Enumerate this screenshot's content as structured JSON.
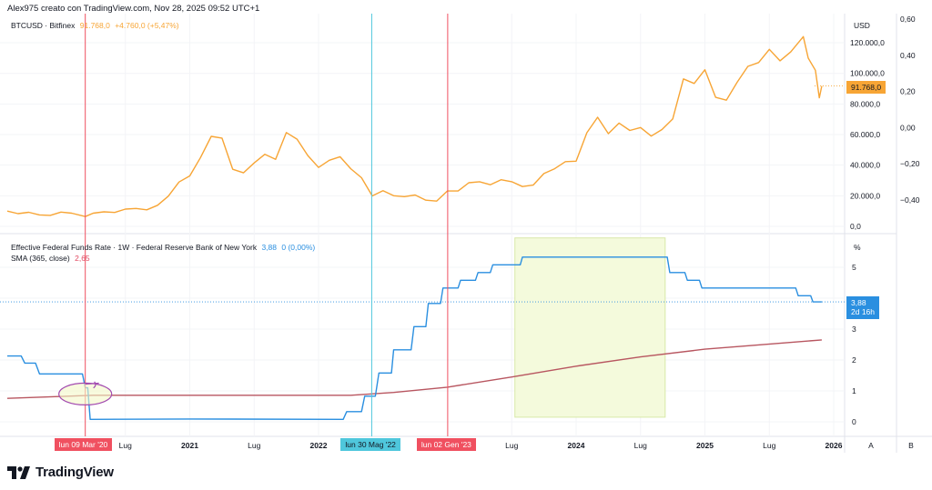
{
  "header": {
    "credit": "Alex975 creato con TradingView.com, Nov 28, 2025 09:52 UTC+1"
  },
  "colors": {
    "btc": "#f7a535",
    "rate": "#2a8fe0",
    "sma": "#b85660",
    "marker_red": "#f05060",
    "marker_cyan": "#4fc7dc",
    "highlight": "#f4fadc",
    "annotation": "#a24ab0"
  },
  "top_pane": {
    "symbol": "BTCUSD · Bitfinex",
    "last": "91.768,0",
    "change": "+4.760,0 (+5,47%)",
    "axis_unit": "USD",
    "price_badge": "91.768,0",
    "axis_ticks": [
      "120.000,0",
      "100.000,0",
      "80.000,0",
      "60.000,0",
      "40.000,0",
      "20.000,0",
      "0,0"
    ],
    "secondary_ticks": [
      "0,60",
      "0,40",
      "0,20",
      "0,00",
      "−0,20",
      "−0,40"
    ]
  },
  "bottom_pane": {
    "title": "Effective Federal Funds Rate · 1W · Federal Reserve Bank of New York",
    "value": "3,88",
    "change": "0 (0,00%)",
    "sma_label": "SMA (365, close)",
    "sma_value": "2,65",
    "axis_unit": "%",
    "axis_ticks": [
      "5",
      "4",
      "3",
      "2",
      "1",
      "0"
    ],
    "rate_badge": "3,88",
    "countdown": "2d 16h"
  },
  "time_axis": {
    "ticks": [
      {
        "date": "2020-07-01",
        "label": "Lug",
        "year": false
      },
      {
        "date": "2021-01-01",
        "label": "2021",
        "year": true
      },
      {
        "date": "2021-07-01",
        "label": "Lug",
        "year": false
      },
      {
        "date": "2022-01-01",
        "label": "2022",
        "year": true
      },
      {
        "date": "2023-07-01",
        "label": "Lug",
        "year": false
      },
      {
        "date": "2024-01-01",
        "label": "2024",
        "year": true
      },
      {
        "date": "2024-07-01",
        "label": "Lug",
        "year": false
      },
      {
        "date": "2025-01-01",
        "label": "2025",
        "year": true
      },
      {
        "date": "2025-07-01",
        "label": "Lug",
        "year": false
      },
      {
        "date": "2026-01-01",
        "label": "2026",
        "year": true
      }
    ],
    "markers": [
      {
        "date": "2020-03-09",
        "label": "lun 09 Mar '20",
        "color": "red"
      },
      {
        "date": "2022-05-30",
        "label": "lun 30 Mag '22",
        "color": "cyan"
      },
      {
        "date": "2023-01-02",
        "label": "lun 02 Gen '23",
        "color": "red"
      }
    ],
    "scale_buttons": [
      "A",
      "B"
    ]
  },
  "brand": {
    "name": "TradingView"
  },
  "chart_data": [
    {
      "type": "line",
      "name": "BTCUSD · Bitfinex",
      "ylabel": "USD",
      "ylim": [
        0,
        130000
      ],
      "x": [
        "2019-08-01",
        "2019-09-01",
        "2019-10-01",
        "2019-11-01",
        "2019-12-01",
        "2020-01-01",
        "2020-02-01",
        "2020-03-09",
        "2020-04-01",
        "2020-05-01",
        "2020-06-01",
        "2020-07-01",
        "2020-08-01",
        "2020-09-01",
        "2020-10-01",
        "2020-11-01",
        "2020-12-01",
        "2021-01-01",
        "2021-02-01",
        "2021-03-01",
        "2021-04-01",
        "2021-05-01",
        "2021-06-01",
        "2021-07-01",
        "2021-08-01",
        "2021-09-01",
        "2021-10-01",
        "2021-11-01",
        "2021-12-01",
        "2022-01-01",
        "2022-02-01",
        "2022-03-01",
        "2022-04-01",
        "2022-05-01",
        "2022-06-01",
        "2022-07-01",
        "2022-08-01",
        "2022-09-01",
        "2022-10-01",
        "2022-11-01",
        "2022-12-01",
        "2023-01-01",
        "2023-02-01",
        "2023-03-01",
        "2023-04-01",
        "2023-05-01",
        "2023-06-01",
        "2023-07-01",
        "2023-08-01",
        "2023-09-01",
        "2023-10-01",
        "2023-11-01",
        "2023-12-01",
        "2024-01-01",
        "2024-02-01",
        "2024-03-01",
        "2024-04-01",
        "2024-05-01",
        "2024-06-01",
        "2024-07-01",
        "2024-08-01",
        "2024-09-01",
        "2024-10-01",
        "2024-11-01",
        "2024-12-01",
        "2025-01-01",
        "2025-02-01",
        "2025-03-01",
        "2025-04-01",
        "2025-05-01",
        "2025-06-01",
        "2025-07-01",
        "2025-08-01",
        "2025-09-01",
        "2025-10-06",
        "2025-10-20",
        "2025-11-10",
        "2025-11-21",
        "2025-11-28"
      ],
      "values": [
        10000,
        8300,
        9200,
        7500,
        7200,
        9300,
        8600,
        6400,
        8600,
        9500,
        9100,
        11300,
        11700,
        10800,
        13800,
        19700,
        29000,
        33000,
        45000,
        58800,
        57700,
        37300,
        35000,
        41500,
        47100,
        43800,
        61300,
        57000,
        46300,
        38500,
        43200,
        45500,
        37700,
        31800,
        19900,
        23300,
        20000,
        19400,
        20500,
        17100,
        16500,
        23100,
        23100,
        28500,
        29200,
        27200,
        30500,
        29200,
        26000,
        27000,
        34500,
        37700,
        42300,
        42600,
        61200,
        71300,
        60600,
        67500,
        62700,
        64600,
        59000,
        63300,
        70200,
        96400,
        93400,
        102400,
        84300,
        82500,
        94200,
        104600,
        107100,
        115700,
        108200,
        114000,
        124000,
        110000,
        102000,
        84000,
        91768
      ]
    },
    {
      "type": "line",
      "name": "Effective Federal Funds Rate · 1W · Federal Reserve Bank of New York",
      "ylabel": "%",
      "ylim": [
        -0.5,
        6
      ],
      "x": [
        "2019-08-01",
        "2019-09-10",
        "2019-09-20",
        "2019-10-20",
        "2019-11-01",
        "2020-03-01",
        "2020-03-09",
        "2020-03-16",
        "2020-03-23",
        "2021-01-01",
        "2022-03-10",
        "2022-03-20",
        "2022-05-01",
        "2022-05-10",
        "2022-06-10",
        "2022-06-20",
        "2022-07-25",
        "2022-08-01",
        "2022-09-20",
        "2022-09-28",
        "2022-11-01",
        "2022-11-08",
        "2022-12-12",
        "2022-12-19",
        "2023-02-01",
        "2023-02-08",
        "2023-03-20",
        "2023-03-27",
        "2023-05-01",
        "2023-05-08",
        "2023-07-25",
        "2023-08-01",
        "2024-09-16",
        "2024-09-23",
        "2024-11-05",
        "2024-11-12",
        "2024-12-16",
        "2024-12-23",
        "2025-09-15",
        "2025-09-22",
        "2025-10-27",
        "2025-11-03",
        "2025-11-28"
      ],
      "values": [
        2.13,
        2.13,
        1.9,
        1.9,
        1.55,
        1.55,
        1.1,
        1.1,
        0.08,
        0.09,
        0.08,
        0.33,
        0.33,
        0.83,
        0.83,
        1.58,
        1.58,
        2.33,
        2.33,
        3.08,
        3.08,
        3.83,
        3.83,
        4.33,
        4.33,
        4.58,
        4.58,
        4.83,
        4.83,
        5.08,
        5.08,
        5.33,
        5.33,
        4.83,
        4.83,
        4.58,
        4.58,
        4.33,
        4.33,
        4.08,
        4.08,
        3.88,
        3.88
      ]
    },
    {
      "type": "line",
      "name": "SMA (365, close)",
      "x": [
        "2019-08-01",
        "2020-04-01",
        "2022-04-01",
        "2022-08-01",
        "2023-01-01",
        "2023-07-01",
        "2024-01-01",
        "2024-07-01",
        "2025-01-01",
        "2025-11-28"
      ],
      "values": [
        0.76,
        0.86,
        0.86,
        0.95,
        1.12,
        1.45,
        1.8,
        2.1,
        2.35,
        2.65
      ]
    }
  ],
  "highlight_range": {
    "from": "2023-07-10",
    "to": "2024-09-10",
    "low": 0.15,
    "high": 5.95
  }
}
